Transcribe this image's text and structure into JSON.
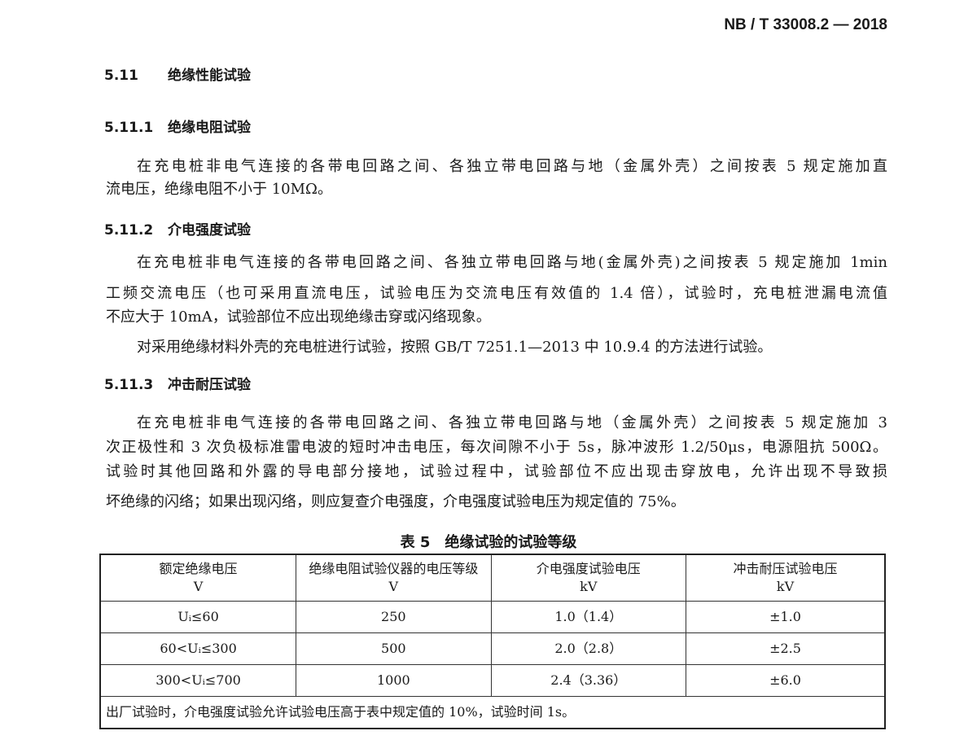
{
  "header": {
    "standard_no": "NB / T 33008.2 — 2018"
  },
  "sections": [
    {
      "num": "5.11",
      "title": "绝缘性能试验"
    },
    {
      "num": "5.11.1",
      "title": "绝缘电阻试验",
      "lines": [
        "在充电桩非电气连接的各带电回路之间、各独立带电回路与地（金属外壳）之间按表 5 规定施加直",
        "流电压，绝缘电阻不小于 10MΩ。"
      ]
    },
    {
      "num": "5.11.2",
      "title": "介电强度试验",
      "lines": [
        "在充电桩非电气连接的各带电回路之间、各独立带电回路与地(金属外壳)之间按表 5 规定施加 1min",
        "工频交流电压（也可采用直流电压，试验电压为交流电压有效值的 1.4 倍），试验时，充电桩泄漏电流值",
        "不应大于 10mA，试验部位不应出现绝缘击穿或闪络现象。",
        "对采用绝缘材料外壳的充电桩进行试验，按照 GB/T 7251.1—2013 中 10.9.4 的方法进行试验。"
      ]
    },
    {
      "num": "5.11.3",
      "title": "冲击耐压试验",
      "lines": [
        "在充电桩非电气连接的各带电回路之间、各独立带电回路与地（金属外壳）之间按表 5 规定施加 3",
        "次正极性和 3 次负极标准雷电波的短时冲击电压，每次间隙不小于 5s，脉冲波形 1.2/50μs，电源阻抗 500Ω。",
        "试验时其他回路和外露的导电部分接地，试验过程中，试验部位不应出现击穿放电，允许出现不导致损",
        "坏绝缘的闪络；如果出现闪络，则应复查介电强度，介电强度试验电压为规定值的 75%。"
      ]
    }
  ],
  "table": {
    "title": "表 5　绝缘试验的试验等级",
    "headers": [
      {
        "name": "额定绝缘电压",
        "unit": "V"
      },
      {
        "name": "绝缘电阻试验仪器的电压等级",
        "unit": "V"
      },
      {
        "name": "介电强度试验电压",
        "unit": "kV"
      },
      {
        "name": "冲击耐压试验电压",
        "unit": "kV"
      }
    ],
    "rows": [
      [
        "Uᵢ≤60",
        "250",
        "1.0（1.4）",
        "±1.0"
      ],
      [
        "60<Uᵢ≤300",
        "500",
        "2.0（2.8）",
        "±2.5"
      ],
      [
        "300<Uᵢ≤700",
        "1000",
        "2.4（3.36）",
        "±6.0"
      ]
    ],
    "note": "出厂试验时，介电强度试验允许试验电压高于表中规定值的 10%，试验时间 1s。"
  }
}
